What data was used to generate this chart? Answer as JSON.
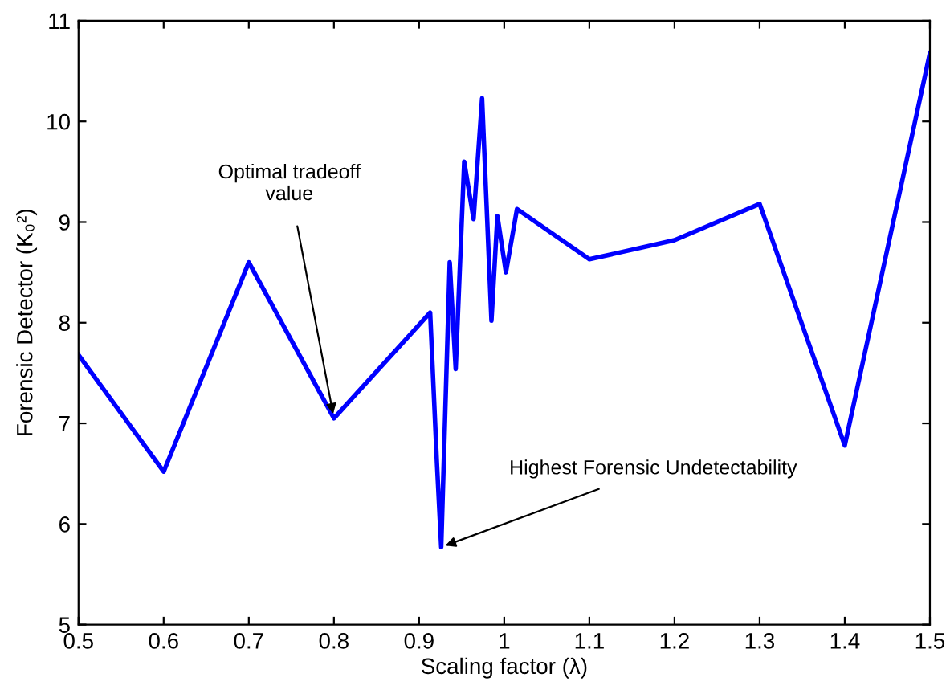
{
  "chart_data": {
    "type": "line",
    "xlabel": "Scaling factor (λ)",
    "ylabel": "Forensic Detector (K₀²)",
    "x": [
      0.5,
      0.6,
      0.7,
      0.8,
      0.913,
      0.921,
      0.926,
      0.936,
      0.943,
      0.953,
      0.964,
      0.974,
      0.985,
      0.992,
      1.002,
      1.015,
      1.1,
      1.2,
      1.3,
      1.4,
      1.5
    ],
    "series": [
      {
        "color": "#0000ff",
        "values": [
          7.68,
          6.52,
          8.6,
          7.05,
          8.1,
          6.6,
          5.77,
          8.6,
          7.54,
          9.6,
          9.03,
          10.23,
          8.02,
          9.06,
          8.5,
          9.13,
          8.63,
          8.82,
          9.18,
          6.78,
          10.68
        ]
      }
    ],
    "xlim": [
      0.5,
      1.5
    ],
    "ylim": [
      5,
      11
    ],
    "xticks": [
      0.5,
      0.6,
      0.7,
      0.8,
      0.9,
      1,
      1.1,
      1.2,
      1.3,
      1.4,
      1.5
    ],
    "yticks": [
      5,
      6,
      7,
      8,
      9,
      10,
      11
    ],
    "annotations": [
      {
        "text": "Optimal tradeoff\nvalue",
        "x": 0.8,
        "y": 7.05
      },
      {
        "text": "Highest Forensic Undetectability",
        "x": 0.926,
        "y": 5.77
      }
    ],
    "grid": false,
    "legend": false,
    "marker": "none",
    "line_style": "solid"
  }
}
